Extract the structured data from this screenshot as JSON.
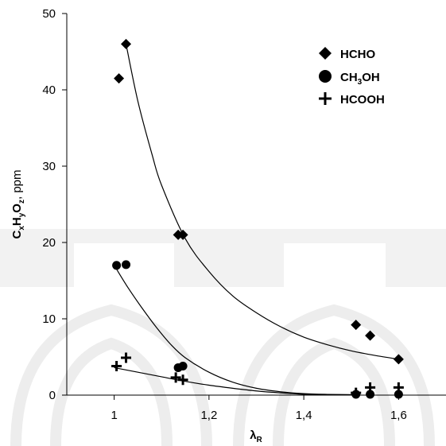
{
  "chart_data": {
    "type": "scatter",
    "x_tick_labels": [
      "1",
      "1,2",
      "1,4",
      "1,6"
    ],
    "x_ticks": [
      1.0,
      1.2,
      1.4,
      1.6
    ],
    "y_tick_labels": [
      "0",
      "10",
      "20",
      "30",
      "40",
      "50"
    ],
    "y_ticks": [
      0,
      10,
      20,
      30,
      40,
      50
    ],
    "xlim": [
      0.9,
      1.7
    ],
    "ylim": [
      0,
      50
    ],
    "xlabel": {
      "main": "λ",
      "sub": "R"
    },
    "ylabel": {
      "p1": "C",
      "s1": "x",
      "p2": "H",
      "s2": "y",
      "p3": "O",
      "s3": "z",
      "p4": ", ppm"
    },
    "grid": false,
    "legend_position": "top-right",
    "series": [
      {
        "name": {
          "main": "HCHO"
        },
        "marker": "diamond",
        "points": [
          [
            1.01,
            41.5
          ],
          [
            1.025,
            46.0
          ],
          [
            1.135,
            21.0
          ],
          [
            1.145,
            21.0
          ],
          [
            1.51,
            9.2
          ],
          [
            1.54,
            7.8
          ],
          [
            1.6,
            4.7
          ]
        ],
        "fit": [
          [
            1.025,
            46.0
          ],
          [
            1.05,
            38.5
          ],
          [
            1.08,
            31.5
          ],
          [
            1.1,
            27.5
          ],
          [
            1.15,
            20.5
          ],
          [
            1.2,
            16.2
          ],
          [
            1.25,
            13.0
          ],
          [
            1.3,
            10.8
          ],
          [
            1.35,
            9.0
          ],
          [
            1.4,
            7.6
          ],
          [
            1.45,
            6.6
          ],
          [
            1.5,
            5.8
          ],
          [
            1.55,
            5.2
          ],
          [
            1.6,
            4.7
          ]
        ]
      },
      {
        "name": {
          "p1": "CH",
          "s1": "3",
          "p2": "OH"
        },
        "marker": "circle",
        "points": [
          [
            1.005,
            17.0
          ],
          [
            1.025,
            17.1
          ],
          [
            1.135,
            3.6
          ],
          [
            1.145,
            3.8
          ],
          [
            1.51,
            0.1
          ],
          [
            1.54,
            0.1
          ],
          [
            1.6,
            0.1
          ]
        ],
        "fit": [
          [
            1.005,
            16.5
          ],
          [
            1.03,
            14.0
          ],
          [
            1.06,
            11.3
          ],
          [
            1.09,
            8.8
          ],
          [
            1.12,
            6.6
          ],
          [
            1.15,
            4.9
          ],
          [
            1.2,
            3.0
          ],
          [
            1.25,
            1.7
          ],
          [
            1.3,
            0.9
          ],
          [
            1.35,
            0.45
          ],
          [
            1.4,
            0.2
          ],
          [
            1.45,
            0.1
          ],
          [
            1.51,
            0.05
          ]
        ]
      },
      {
        "name": {
          "main": "HCOOH"
        },
        "marker": "plus",
        "points": [
          [
            1.005,
            3.8
          ],
          [
            1.025,
            4.9
          ],
          [
            1.13,
            2.3
          ],
          [
            1.145,
            2.0
          ],
          [
            1.51,
            0.3
          ],
          [
            1.54,
            1.0
          ],
          [
            1.6,
            1.0
          ]
        ],
        "fit": [
          [
            1.0,
            3.6
          ],
          [
            1.05,
            3.0
          ],
          [
            1.1,
            2.4
          ],
          [
            1.15,
            1.8
          ],
          [
            1.2,
            1.3
          ],
          [
            1.25,
            0.9
          ],
          [
            1.3,
            0.55
          ],
          [
            1.35,
            0.3
          ],
          [
            1.4,
            0.12
          ],
          [
            1.45,
            0.05
          ],
          [
            1.51,
            0.02
          ]
        ]
      }
    ]
  }
}
